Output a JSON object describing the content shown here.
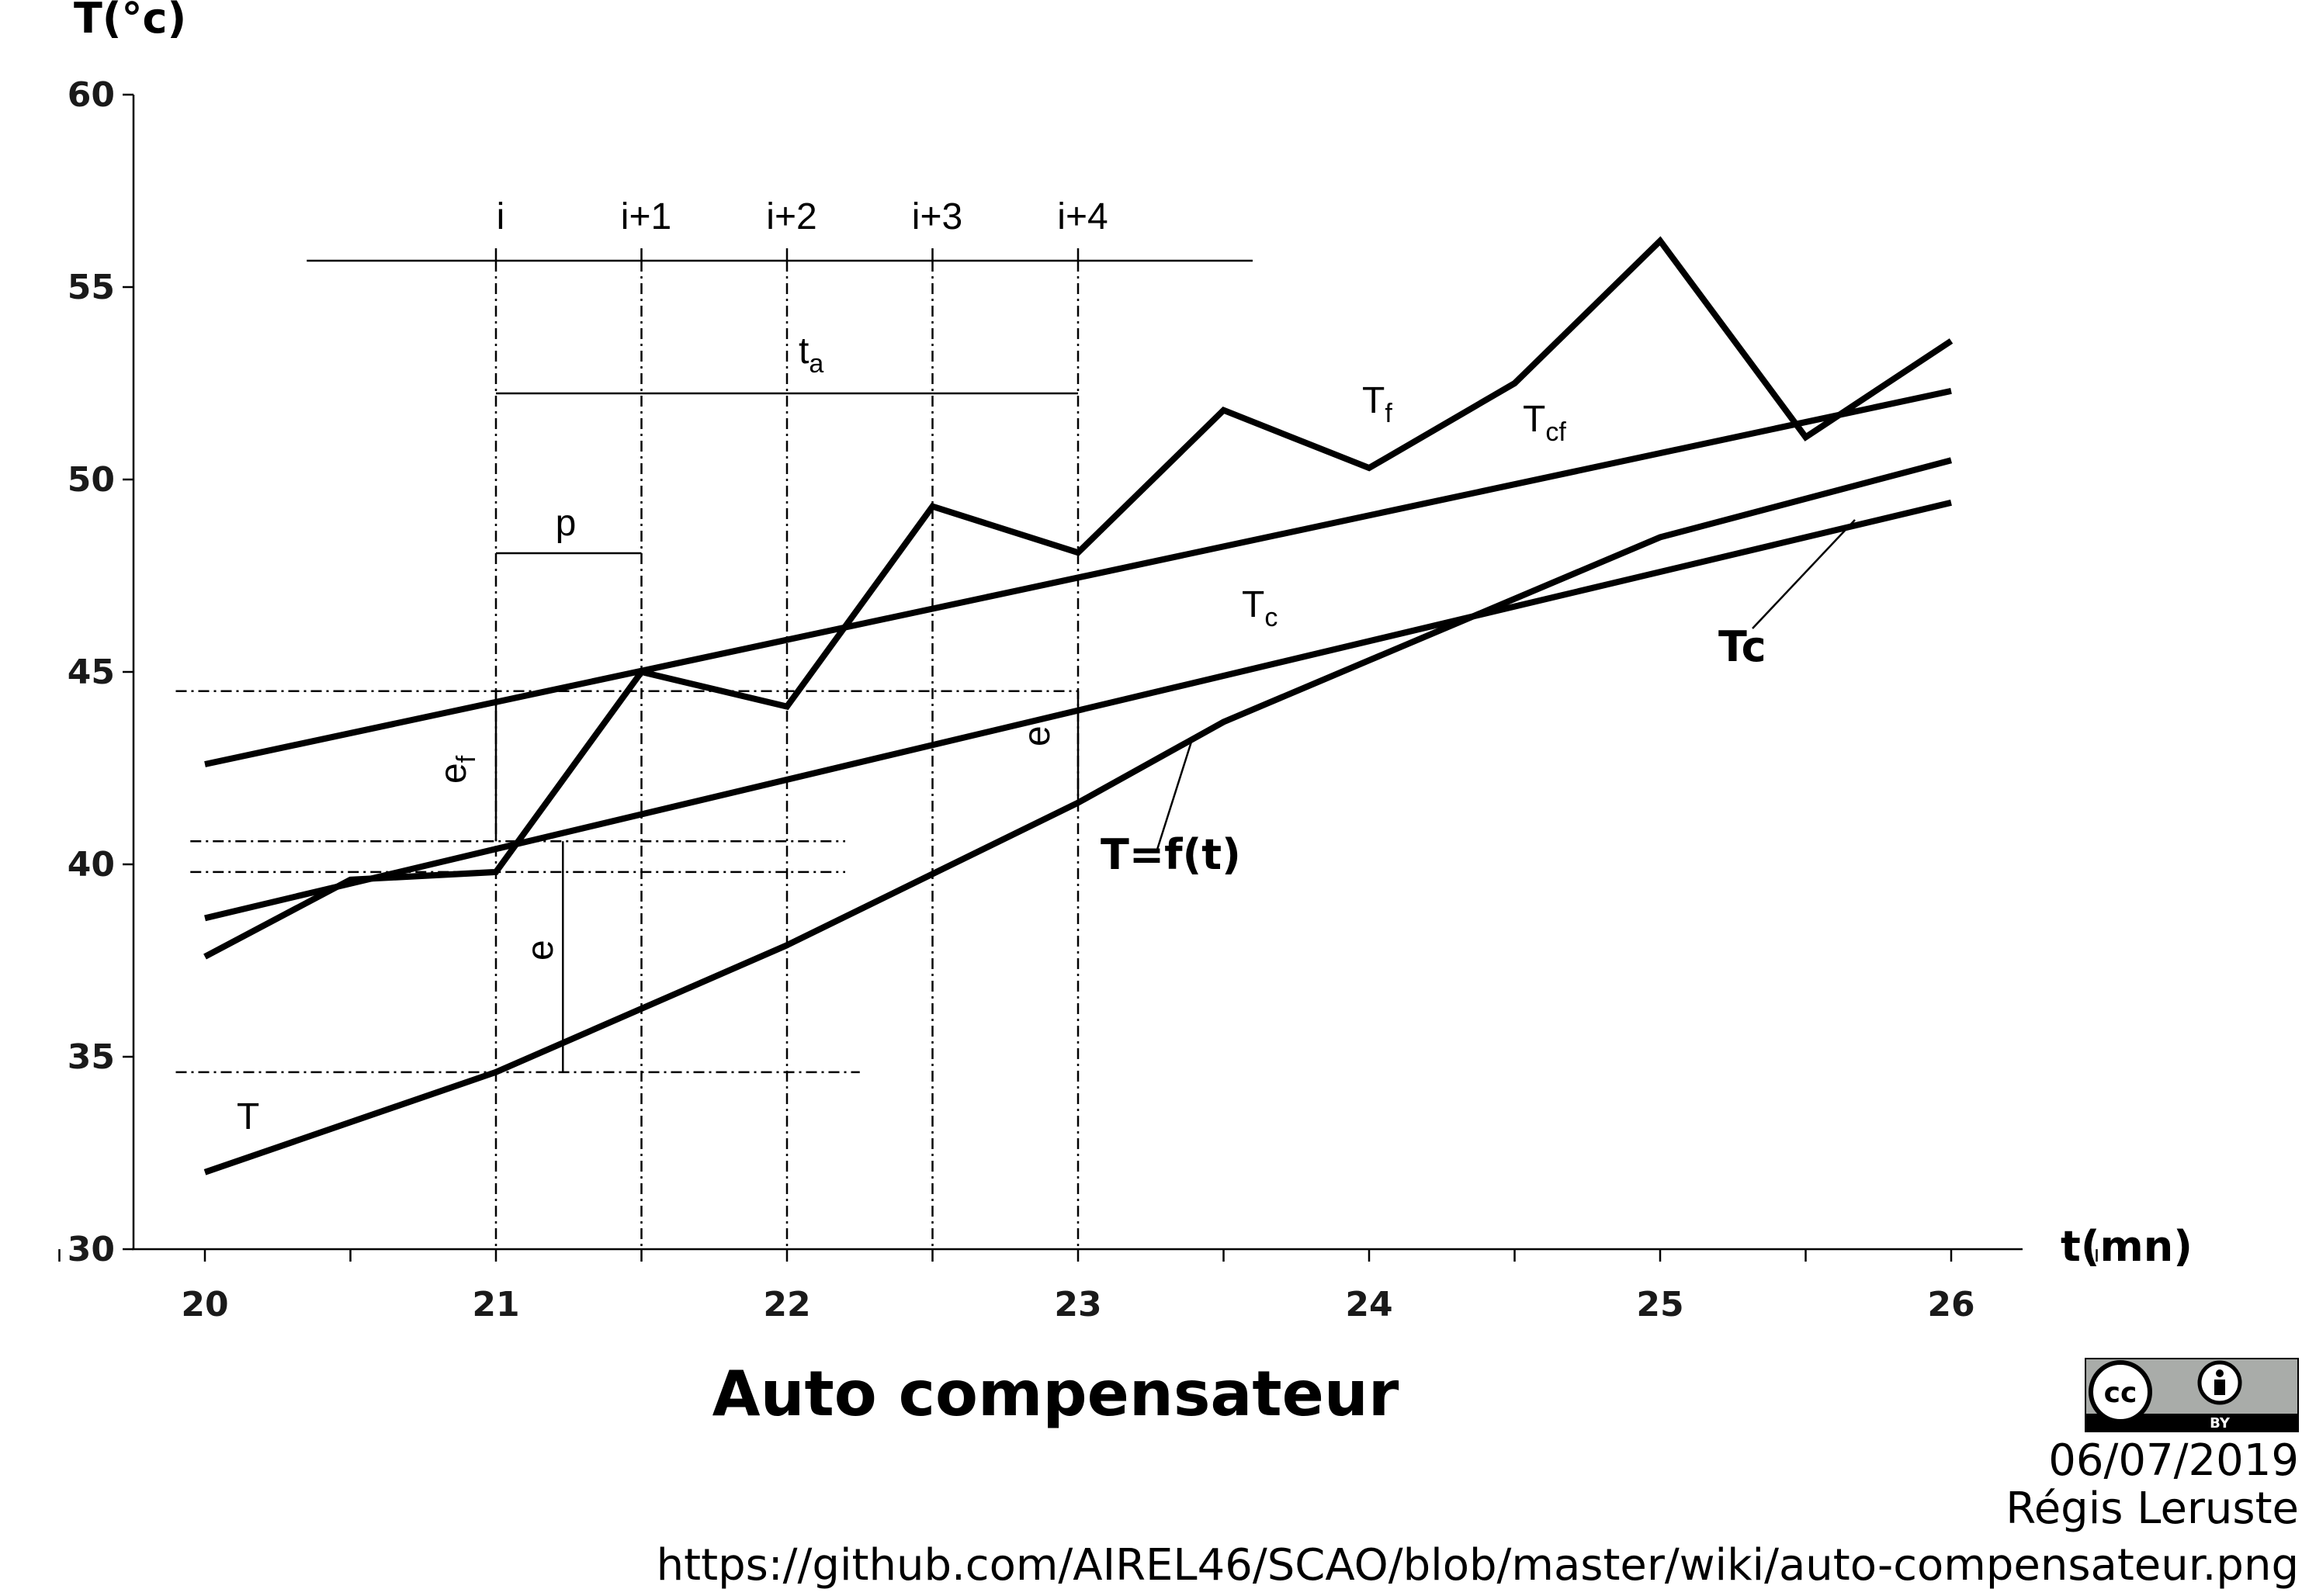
{
  "chart_data": {
    "type": "line",
    "title": "Auto compensateur",
    "xlabel": "t(mn)",
    "ylabel": "T(°c)",
    "xlim": [
      20,
      26
    ],
    "ylim": [
      30,
      60
    ],
    "x_ticks": [
      20,
      21,
      22,
      23,
      24,
      25,
      26
    ],
    "y_ticks": [
      30,
      35,
      40,
      45,
      50,
      55,
      60
    ],
    "grid": false,
    "series": [
      {
        "name": "T",
        "x": [
          20,
          21,
          22,
          23,
          23.5,
          24,
          25,
          26
        ],
        "y": [
          32.0,
          34.6,
          37.9,
          41.6,
          43.7,
          45.3,
          48.5,
          50.5
        ]
      },
      {
        "name": "Tf",
        "x": [
          20,
          20.5,
          21,
          21.5,
          22,
          22.5,
          23,
          23.5,
          24,
          24.5,
          25,
          25.5,
          26
        ],
        "y": [
          37.6,
          39.6,
          39.8,
          45.0,
          44.1,
          49.3,
          48.1,
          51.8,
          50.3,
          52.5,
          56.2,
          51.1,
          53.6
        ]
      },
      {
        "name": "Tc",
        "x": [
          20,
          26
        ],
        "y": [
          38.6,
          49.4
        ]
      },
      {
        "name": "Tcf",
        "x": [
          20,
          26
        ],
        "y": [
          42.6,
          52.3
        ]
      }
    ],
    "annotations": {
      "sample_labels": [
        "i",
        "i+1",
        "i+2",
        "i+3",
        "i+4"
      ],
      "ta": "t",
      "ta_sub": "a",
      "p": "p",
      "ef": "e",
      "ef_sub": "f",
      "e": "e",
      "T": "T",
      "Tf": "T",
      "Tf_sub": "f",
      "Tcf": "T",
      "Tcf_sub": "cf",
      "Tc": "T",
      "Tc_sub": "c",
      "Tc_callout": "Tc",
      "Tft_callout": "T=f(t)"
    }
  },
  "footer": {
    "date": "06/07/2019",
    "author": "Régis Leruste",
    "url": "https://github.com/AIREL46/SCAO/blob/master/wiki/auto-compensateur.png",
    "license_cc": "cc",
    "license_by": "BY"
  }
}
